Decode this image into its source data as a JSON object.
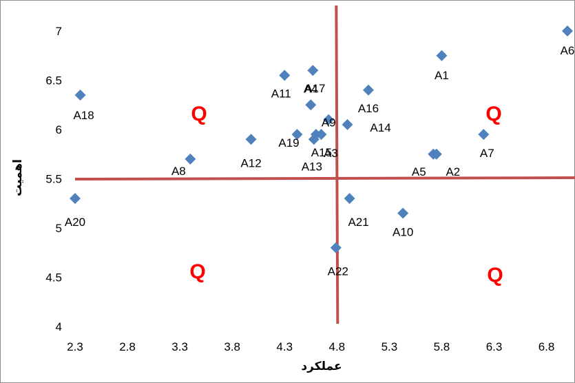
{
  "chart_data": {
    "type": "scatter",
    "xlabel": "عملکرد",
    "ylabel": "اهمیت",
    "xlim": [
      2.3,
      7.0
    ],
    "ylim": [
      4.0,
      7.0
    ],
    "x_ticks": [
      "2.3",
      "2.8",
      "3.3",
      "3.8",
      "4.3",
      "4.8",
      "5.3",
      "5.8",
      "6.3",
      "6.8"
    ],
    "y_ticks": [
      "4",
      "4.5",
      "5",
      "5.5",
      "6",
      "6.5",
      "7"
    ],
    "grid": false,
    "marker": "diamond",
    "marker_color": "#4f81bd",
    "divider_color": "#c0504d",
    "divider_x": 4.8,
    "divider_y": 5.5,
    "quadrant_label": "Q",
    "quadrant_label_color": "#ff0000",
    "points": [
      {
        "label": "A1",
        "x": 5.8,
        "y": 6.75
      },
      {
        "label": "A2",
        "x": 5.75,
        "y": 5.75
      },
      {
        "label": "A3",
        "x": 4.65,
        "y": 5.95
      },
      {
        "label": "A4",
        "x": 4.55,
        "y": 6.25
      },
      {
        "label": "A5",
        "x": 5.72,
        "y": 5.75
      },
      {
        "label": "A6",
        "x": 7.0,
        "y": 7.0
      },
      {
        "label": "A7",
        "x": 6.2,
        "y": 5.95
      },
      {
        "label": "A8",
        "x": 3.4,
        "y": 5.7
      },
      {
        "label": "A9",
        "x": 4.72,
        "y": 6.1
      },
      {
        "label": "A10",
        "x": 5.43,
        "y": 5.15
      },
      {
        "label": "A11",
        "x": 4.3,
        "y": 6.55
      },
      {
        "label": "A12",
        "x": 3.98,
        "y": 5.9
      },
      {
        "label": "A13",
        "x": 4.58,
        "y": 5.9
      },
      {
        "label": "A14",
        "x": 4.9,
        "y": 6.05
      },
      {
        "label": "A15",
        "x": 4.6,
        "y": 5.95
      },
      {
        "label": "A16",
        "x": 5.1,
        "y": 6.4
      },
      {
        "label": "A17",
        "x": 4.57,
        "y": 6.6
      },
      {
        "label": "A18",
        "x": 2.35,
        "y": 6.35
      },
      {
        "label": "A19",
        "x": 4.42,
        "y": 5.95
      },
      {
        "label": "A20",
        "x": 2.3,
        "y": 5.3
      },
      {
        "label": "A21",
        "x": 4.92,
        "y": 5.3
      },
      {
        "label": "A22",
        "x": 4.79,
        "y": 4.8
      }
    ]
  }
}
